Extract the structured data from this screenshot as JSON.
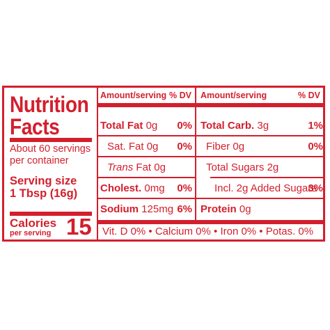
{
  "colors": {
    "brand_red": "#d31f2d",
    "background": "#ffffff"
  },
  "label": {
    "title": "Nutrition\nFacts",
    "servings_per_container": "About 60 servings\nper container",
    "serving_size": "Serving size\n1 Tbsp (16g)",
    "calories_label": "Calories",
    "calories_sublabel": "per serving",
    "calories_value": "15"
  },
  "headers": {
    "left_amount": "Amount/serving",
    "left_dv": "% DV",
    "right_amount": "Amount/serving",
    "right_dv": "% DV"
  },
  "left_rows": [
    {
      "name": "Total Fat",
      "amount": "0g",
      "dv": "0%"
    },
    {
      "name": "Sat. Fat",
      "amount": "0g",
      "dv": "0%"
    },
    {
      "name": "Trans",
      "name_rest": "Fat 0g",
      "dv": ""
    },
    {
      "name": "Cholest.",
      "amount": "0mg",
      "dv": "0%"
    },
    {
      "name": "Sodium",
      "amount": "125mg",
      "dv": "6%"
    }
  ],
  "right_rows": [
    {
      "name": "Total Carb.",
      "amount": "3g",
      "dv": "1%"
    },
    {
      "name": "Fiber",
      "amount": "0g",
      "dv": "0%"
    },
    {
      "name": "Total Sugars",
      "amount": "2g",
      "dv": ""
    },
    {
      "name": "Incl. 2g Added Sugars",
      "amount": "",
      "dv": "3%"
    },
    {
      "name": "Protein",
      "amount": "0g",
      "dv": ""
    }
  ],
  "footer": "Vit. D 0% • Calcium 0% • Iron 0% • Potas. 0%"
}
